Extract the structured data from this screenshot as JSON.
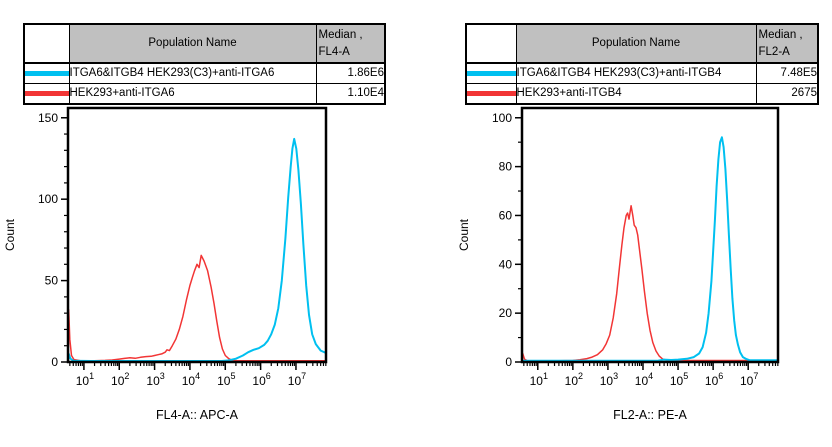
{
  "colors": {
    "cyan_series": "#00c0f0",
    "red_series": "#f23535",
    "table_header_bg": "#c0c0c0",
    "axis": "#000000"
  },
  "left_panel": {
    "table": {
      "header": {
        "population": "Population Name",
        "median_line1": "Median ,",
        "median_line2": "FL4-A"
      },
      "rows": [
        {
          "swatch_color": "#00c0f0",
          "label": "ITGA6&ITGB4 HEK293(C3)+anti-ITGA6",
          "median": "1.86E6"
        },
        {
          "swatch_color": "#f23535",
          "label": "HEK293+anti-ITGA6",
          "median": "1.10E4"
        }
      ]
    }
  },
  "right_panel": {
    "table": {
      "header": {
        "population": "Population Name",
        "median_line1": "Median ,",
        "median_line2": "FL2-A"
      },
      "rows": [
        {
          "swatch_color": "#00c0f0",
          "label": "ITGA6&ITGB4 HEK293(C3)+anti-ITGB4",
          "median": "7.48E5"
        },
        {
          "swatch_color": "#f23535",
          "label": "HEK293+anti-ITGB4",
          "median": "2675"
        }
      ]
    }
  },
  "chart_data": [
    {
      "type": "line",
      "subtype": "flow-histogram-overlay",
      "xlabel": "FL4-A:: APC-A",
      "ylabel": "Count",
      "xscale": "log",
      "xlim_log": [
        0.55,
        7.85
      ],
      "x_major_tick_exponents": [
        1,
        2,
        3,
        4,
        5,
        6,
        7
      ],
      "ylim": [
        0,
        156
      ],
      "yticks": [
        0,
        50,
        100,
        150
      ],
      "y_minor_step": 10,
      "grid": false,
      "legend": "table-above",
      "series": [
        {
          "name": "HEK293+anti-ITGA6",
          "color": "#f23535",
          "median": "1.10E4",
          "points": [
            [
              0.55,
              0
            ],
            [
              0.57,
              32
            ],
            [
              0.6,
              14
            ],
            [
              0.65,
              4
            ],
            [
              0.72,
              1.5
            ],
            [
              0.9,
              0.8
            ],
            [
              1.3,
              0.8
            ],
            [
              1.6,
              1
            ],
            [
              1.8,
              1.2
            ],
            [
              2.0,
              1.8
            ],
            [
              2.15,
              2.2
            ],
            [
              2.3,
              2.6
            ],
            [
              2.45,
              2.3
            ],
            [
              2.6,
              2.9
            ],
            [
              2.75,
              3.3
            ],
            [
              2.9,
              3.5
            ],
            [
              3.0,
              4
            ],
            [
              3.1,
              4.5
            ],
            [
              3.2,
              5
            ],
            [
              3.3,
              6
            ],
            [
              3.35,
              7.5
            ],
            [
              3.42,
              7
            ],
            [
              3.5,
              10
            ],
            [
              3.6,
              14
            ],
            [
              3.7,
              20
            ],
            [
              3.8,
              28
            ],
            [
              3.9,
              38
            ],
            [
              4.0,
              47
            ],
            [
              4.07,
              52
            ],
            [
              4.13,
              56
            ],
            [
              4.2,
              60
            ],
            [
              4.26,
              58
            ],
            [
              4.32,
              65.5
            ],
            [
              4.4,
              62
            ],
            [
              4.5,
              56
            ],
            [
              4.6,
              46
            ],
            [
              4.68,
              36
            ],
            [
              4.76,
              25
            ],
            [
              4.84,
              15
            ],
            [
              4.92,
              8
            ],
            [
              5.0,
              4
            ],
            [
              5.1,
              2
            ],
            [
              5.2,
              1
            ],
            [
              5.35,
              0.8
            ],
            [
              7.85,
              0.8
            ]
          ]
        },
        {
          "name": "ITGA6&ITGB4 HEK293(C3)+anti-ITGA6",
          "color": "#00c0f0",
          "median": "1.86E6",
          "points": [
            [
              0.55,
              0
            ],
            [
              0.57,
              5
            ],
            [
              0.62,
              2
            ],
            [
              0.7,
              0.8
            ],
            [
              1.2,
              0.6
            ],
            [
              4.9,
              0.6
            ],
            [
              5.1,
              1
            ],
            [
              5.3,
              2
            ],
            [
              5.5,
              4
            ],
            [
              5.65,
              6
            ],
            [
              5.8,
              7.5
            ],
            [
              5.95,
              8.5
            ],
            [
              6.1,
              10.5
            ],
            [
              6.2,
              13
            ],
            [
              6.3,
              17
            ],
            [
              6.4,
              23
            ],
            [
              6.5,
              33
            ],
            [
              6.6,
              50
            ],
            [
              6.7,
              76
            ],
            [
              6.78,
              101
            ],
            [
              6.85,
              120
            ],
            [
              6.9,
              131
            ],
            [
              6.95,
              137
            ],
            [
              7.01,
              131
            ],
            [
              7.07,
              118
            ],
            [
              7.14,
              97
            ],
            [
              7.21,
              72
            ],
            [
              7.29,
              47
            ],
            [
              7.37,
              29
            ],
            [
              7.46,
              17
            ],
            [
              7.56,
              11
            ],
            [
              7.7,
              7
            ],
            [
              7.85,
              5.5
            ]
          ]
        }
      ]
    },
    {
      "type": "line",
      "subtype": "flow-histogram-overlay",
      "xlabel": "FL2-A:: PE-A",
      "ylabel": "Count",
      "xscale": "log",
      "xlim_log": [
        0.55,
        7.85
      ],
      "x_major_tick_exponents": [
        1,
        2,
        3,
        4,
        5,
        6,
        7
      ],
      "ylim": [
        0,
        104
      ],
      "yticks": [
        0,
        20,
        40,
        60,
        80,
        100
      ],
      "y_minor_step": 10,
      "grid": false,
      "legend": "table-above",
      "series": [
        {
          "name": "HEK293+anti-ITGB4",
          "color": "#f23535",
          "median": "2675",
          "points": [
            [
              0.55,
              0
            ],
            [
              0.57,
              3.5
            ],
            [
              0.62,
              1.2
            ],
            [
              0.7,
              0.5
            ],
            [
              1.6,
              0.5
            ],
            [
              2.0,
              0.6
            ],
            [
              2.2,
              0.9
            ],
            [
              2.4,
              1.4
            ],
            [
              2.55,
              2
            ],
            [
              2.7,
              3
            ],
            [
              2.85,
              5
            ],
            [
              2.95,
              7.5
            ],
            [
              3.05,
              11
            ],
            [
              3.15,
              18
            ],
            [
              3.25,
              28
            ],
            [
              3.33,
              39
            ],
            [
              3.4,
              48
            ],
            [
              3.46,
              55
            ],
            [
              3.52,
              60
            ],
            [
              3.56,
              61
            ],
            [
              3.6,
              58.5
            ],
            [
              3.66,
              64
            ],
            [
              3.71,
              60
            ],
            [
              3.75,
              56
            ],
            [
              3.8,
              55
            ],
            [
              3.85,
              52
            ],
            [
              3.9,
              46
            ],
            [
              3.97,
              38
            ],
            [
              4.04,
              29
            ],
            [
              4.12,
              20
            ],
            [
              4.2,
              13
            ],
            [
              4.28,
              8
            ],
            [
              4.37,
              4.5
            ],
            [
              4.46,
              2.5
            ],
            [
              4.56,
              1.2
            ],
            [
              4.7,
              0.6
            ],
            [
              7.85,
              0.6
            ]
          ]
        },
        {
          "name": "ITGA6&ITGB4 HEK293(C3)+anti-ITGB4",
          "color": "#00c0f0",
          "median": "7.48E5",
          "points": [
            [
              0.55,
              0.5
            ],
            [
              4.4,
              0.5
            ],
            [
              4.6,
              1
            ],
            [
              4.8,
              0.8
            ],
            [
              5.0,
              1
            ],
            [
              5.25,
              1.3
            ],
            [
              5.45,
              2
            ],
            [
              5.6,
              3.5
            ],
            [
              5.7,
              6
            ],
            [
              5.8,
              12
            ],
            [
              5.87,
              20
            ],
            [
              5.95,
              33
            ],
            [
              6.0,
              45
            ],
            [
              6.05,
              58
            ],
            [
              6.1,
              72
            ],
            [
              6.15,
              83
            ],
            [
              6.2,
              90
            ],
            [
              6.25,
              92
            ],
            [
              6.3,
              88
            ],
            [
              6.35,
              79
            ],
            [
              6.4,
              66
            ],
            [
              6.45,
              52
            ],
            [
              6.5,
              38
            ],
            [
              6.55,
              26
            ],
            [
              6.6,
              17
            ],
            [
              6.65,
              11
            ],
            [
              6.71,
              7
            ],
            [
              6.77,
              4
            ],
            [
              6.85,
              2
            ],
            [
              6.95,
              1.2
            ],
            [
              7.05,
              0.7
            ],
            [
              7.85,
              0.7
            ]
          ]
        }
      ]
    }
  ]
}
